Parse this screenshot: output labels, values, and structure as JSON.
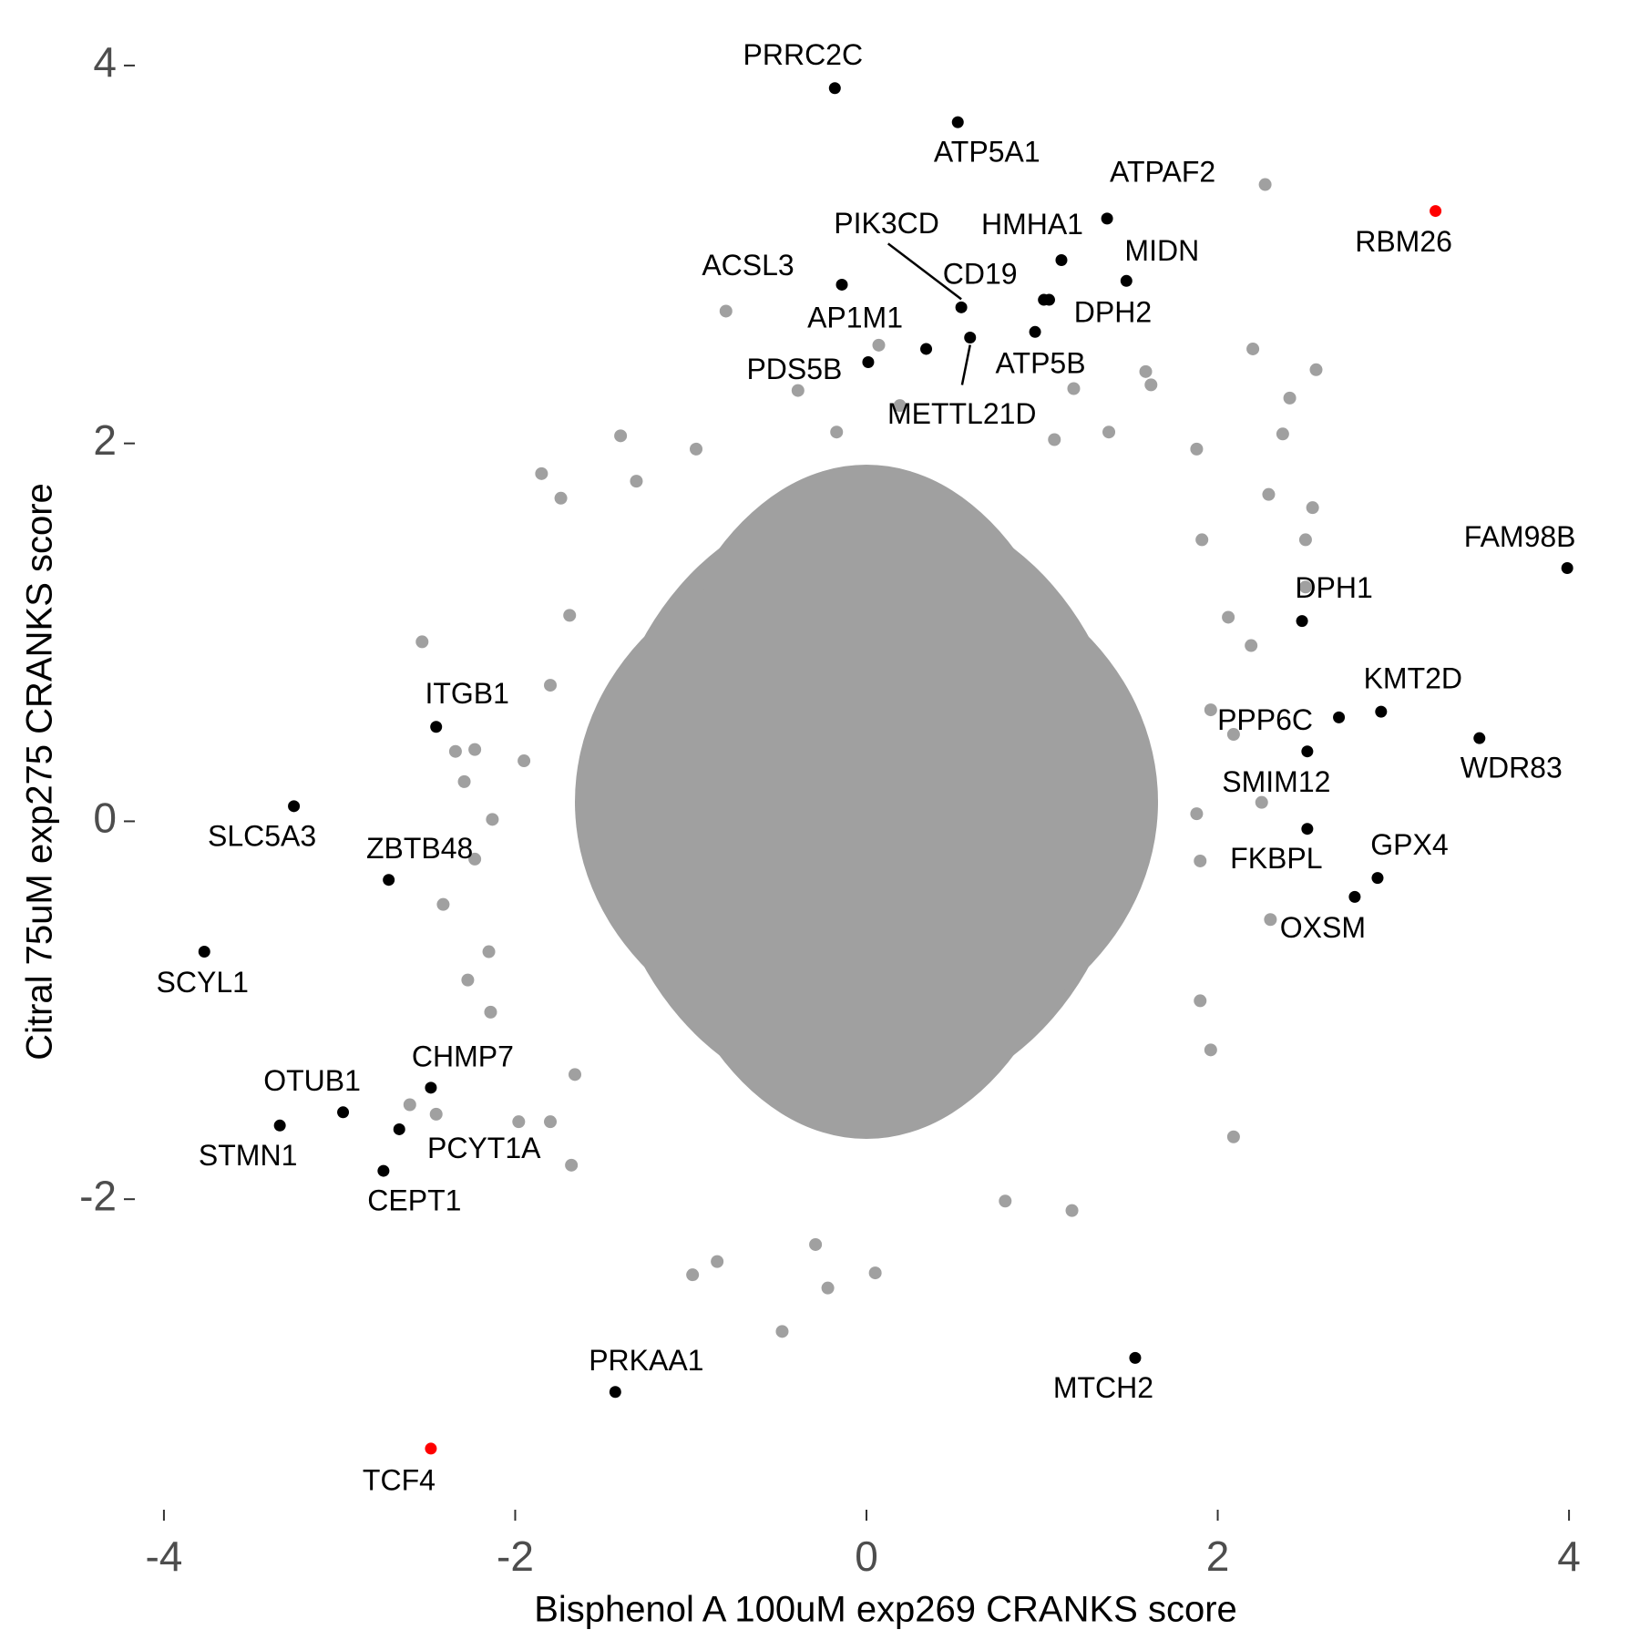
{
  "chart_data": {
    "type": "scatter",
    "x_label": "Bisphenol A 100uM exp269 CRANKS score",
    "y_label": "Citral 75uM exp275 CRANKS score",
    "xlim": [
      -4.15,
      4.15
    ],
    "ylim": [
      -3.6,
      4.12
    ],
    "xticks": [
      -4,
      -2,
      0,
      2,
      4
    ],
    "yticks": [
      -2,
      0,
      2,
      4
    ],
    "series": [
      {
        "color": "#a0a0a0",
        "x": [
          2.27,
          -0.8,
          2.2,
          2.56,
          1.59,
          0.07,
          -0.39,
          2.41,
          0.19,
          -0.17,
          -1.4,
          2.37,
          1.38,
          1.88,
          -1.85,
          -0.97,
          -1.31,
          -1.74,
          2.54,
          2.29,
          1.91,
          2.5,
          2.19,
          -2.53,
          -1.8,
          -1.69,
          -2.34,
          -2.23,
          -1.95,
          -2.29,
          -2.13,
          -2.23,
          -2.41,
          -2.27,
          -2.14,
          -2.15,
          -2.6,
          -2.45,
          -1.98,
          -1.8,
          -1.68,
          -1.66,
          -0.99,
          -0.85,
          -0.48,
          -0.22,
          0.05,
          -0.29,
          0.79,
          1.17,
          2.09,
          1.96,
          1.9,
          2.3,
          2.25,
          1.9,
          1.96,
          2.06,
          1.62,
          1.18,
          1.07,
          2.5,
          1.88,
          2.09
        ],
        "y": [
          3.37,
          2.7,
          2.5,
          2.39,
          2.38,
          2.52,
          2.28,
          2.24,
          2.2,
          2.06,
          2.04,
          2.05,
          2.06,
          1.97,
          1.84,
          1.97,
          1.8,
          1.71,
          1.66,
          1.73,
          1.49,
          1.49,
          0.93,
          0.95,
          0.72,
          1.09,
          0.37,
          0.38,
          0.32,
          0.21,
          0.01,
          -0.2,
          -0.44,
          -0.84,
          -1.01,
          -0.69,
          -1.5,
          -1.55,
          -1.59,
          -1.59,
          -1.82,
          -1.34,
          -2.4,
          -2.33,
          -2.7,
          -2.47,
          -2.39,
          -2.24,
          -2.01,
          -2.06,
          -1.67,
          -1.21,
          -0.95,
          -0.52,
          0.1,
          -0.21,
          0.59,
          1.08,
          2.31,
          2.29,
          2.02,
          1.24,
          0.04,
          0.46
        ]
      }
    ],
    "labeled_points": {
      "labels": [
        "PRRC2C",
        "ATP5A1",
        "ATPAF2",
        "RBM26",
        "HMHA1",
        "MIDN",
        "ACSL3",
        "PIK3CD",
        "CD19",
        "DPH2",
        "ATP5B",
        "METTL21D",
        "AP1M1",
        "PDS5B",
        "FAM98B",
        "DPH1",
        "KMT2D",
        "PPP6C",
        "WDR83",
        "SMIM12",
        "FKBPL",
        "GPX4",
        "OXSM",
        "ITGB1",
        "SLC5A3",
        "ZBTB48",
        "SCYL1",
        "CHMP7",
        "OTUB1",
        "PCYT1A",
        "STMN1",
        "CEPT1",
        "PRKAA1",
        "MTCH2",
        "TCF4"
      ],
      "x": [
        -0.18,
        0.52,
        1.37,
        3.24,
        1.11,
        1.48,
        -0.14,
        0.54,
        1.01,
        1.04,
        0.96,
        0.59,
        0.34,
        0.01,
        3.99,
        2.48,
        2.93,
        2.69,
        3.49,
        2.51,
        2.51,
        2.91,
        2.78,
        -2.45,
        -3.26,
        -2.72,
        -3.77,
        -2.48,
        -2.98,
        -2.66,
        -3.34,
        -2.75,
        -1.43,
        1.53,
        -2.48
      ],
      "y": [
        3.88,
        3.7,
        3.19,
        3.23,
        2.97,
        2.86,
        2.84,
        2.72,
        2.76,
        2.76,
        2.59,
        2.56,
        2.5,
        2.43,
        1.34,
        1.06,
        0.58,
        0.55,
        0.44,
        0.37,
        -0.04,
        -0.3,
        -0.4,
        0.5,
        0.08,
        -0.31,
        -0.69,
        -1.41,
        -1.54,
        -1.63,
        -1.61,
        -1.85,
        -3.02,
        -2.84,
        -3.32
      ],
      "colors": [
        "#000000",
        "#000000",
        "#000000",
        "#ff0000",
        "#000000",
        "#000000",
        "#000000",
        "#000000",
        "#000000",
        "#000000",
        "#000000",
        "#000000",
        "#000000",
        "#000000",
        "#000000",
        "#000000",
        "#000000",
        "#000000",
        "#000000",
        "#000000",
        "#000000",
        "#000000",
        "#000000",
        "#000000",
        "#000000",
        "#000000",
        "#000000",
        "#000000",
        "#000000",
        "#000000",
        "#000000",
        "#000000",
        "#000000",
        "#000000",
        "#ff0000"
      ]
    }
  }
}
